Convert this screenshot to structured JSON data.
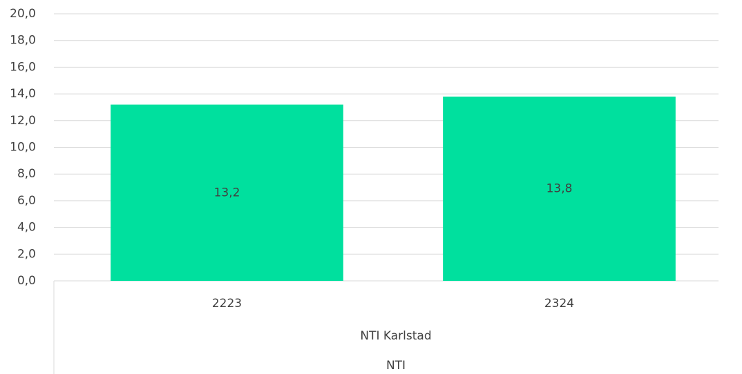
{
  "chart_data": {
    "type": "bar",
    "categories": [
      "2223",
      "2324"
    ],
    "category_groups": [
      "NTI Karlstad",
      "NTI"
    ],
    "values": [
      13.2,
      13.8
    ],
    "value_labels": [
      "13,2",
      "13,8"
    ],
    "color": "#00e09e",
    "ylim": [
      0,
      20
    ],
    "yticks": [
      {
        "value": 0,
        "label": "0,0"
      },
      {
        "value": 2,
        "label": "2,0"
      },
      {
        "value": 4,
        "label": "4,0"
      },
      {
        "value": 6,
        "label": "6,0"
      },
      {
        "value": 8,
        "label": "8,0"
      },
      {
        "value": 10,
        "label": "10,0"
      },
      {
        "value": 12,
        "label": "12,0"
      },
      {
        "value": 14,
        "label": "14,0"
      },
      {
        "value": 16,
        "label": "16,0"
      },
      {
        "value": 18,
        "label": "18,0"
      },
      {
        "value": 20,
        "label": "20,0"
      }
    ],
    "grid": true
  }
}
